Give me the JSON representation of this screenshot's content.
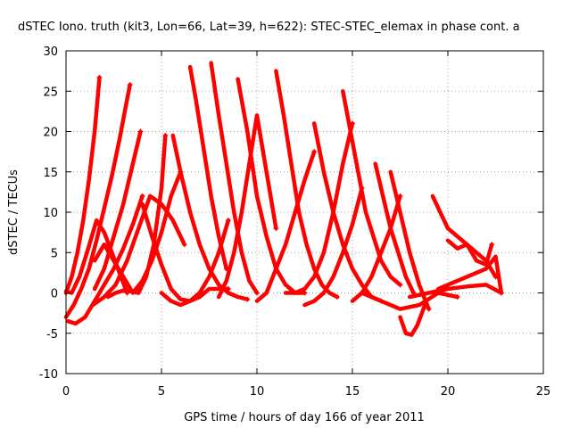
{
  "chart_data": {
    "type": "line",
    "title": "dSTEC Iono. truth (kit3, Lon=66, Lat=39, h=622): STEC-STEC_elemax in phase cont. a",
    "xlabel": "GPS time / hours of day 166 of year 2011",
    "ylabel": "dSTEC  / TECUs",
    "xlim": [
      0,
      25
    ],
    "ylim": [
      -10,
      30
    ],
    "xticks": [
      0,
      5,
      10,
      15,
      20,
      25
    ],
    "yticks": [
      -10,
      -5,
      0,
      5,
      10,
      15,
      20,
      25,
      30
    ],
    "grid": true,
    "marker": "+",
    "color": "#ff0000",
    "series": [
      {
        "x": [
          0.0,
          0.3,
          0.6,
          0.9,
          1.2,
          1.5,
          1.75
        ],
        "y": [
          0,
          2,
          5,
          9,
          14,
          20,
          26.7
        ]
      },
      {
        "x": [
          0.0,
          0.4,
          0.8,
          1.2,
          1.6,
          2.0,
          2.4,
          2.8,
          3.2,
          3.35
        ],
        "y": [
          -3,
          -1.5,
          0.5,
          3,
          6.5,
          10.5,
          14.5,
          19,
          24,
          25.8
        ]
      },
      {
        "x": [
          0.0,
          0.3,
          0.7,
          1.1,
          1.6,
          2.0,
          2.4,
          2.8,
          3.2
        ],
        "y": [
          0.2,
          0,
          2,
          5,
          9,
          7.5,
          5,
          2.5,
          0
        ]
      },
      {
        "x": [
          0.1,
          0.5,
          1.0,
          1.5,
          2.0,
          2.5,
          3.0,
          3.5,
          4.0
        ],
        "y": [
          -3.5,
          -3.8,
          -3,
          -1,
          1,
          3,
          5.5,
          8.5,
          12
        ]
      },
      {
        "x": [
          1.5,
          2.0,
          2.5,
          3.0,
          3.5,
          3.9
        ],
        "y": [
          0.5,
          3,
          7,
          11,
          16,
          20
        ]
      },
      {
        "x": [
          1.4,
          2.0,
          2.6,
          3.2,
          3.8,
          4.4,
          5.0,
          5.6,
          6.2
        ],
        "y": [
          -1.5,
          -0.5,
          1,
          4,
          8,
          12,
          11,
          9,
          6
        ]
      },
      {
        "x": [
          1.5,
          2.0,
          2.5,
          3.0,
          3.5,
          4.0,
          4.5,
          5.0,
          5.5,
          6.0
        ],
        "y": [
          4,
          6,
          4,
          2,
          0,
          1.5,
          4,
          7.5,
          12,
          15
        ]
      },
      {
        "x": [
          2.2,
          2.6,
          3.0,
          3.4,
          3.8,
          4.2,
          4.6,
          5.0,
          5.2
        ],
        "y": [
          -0.5,
          0,
          0.3,
          0.2,
          0,
          2,
          6,
          13,
          19.5
        ]
      },
      {
        "x": [
          4.0,
          4.5,
          5.0,
          5.5,
          6.0,
          6.5,
          7.0,
          7.5,
          8.0,
          8.5
        ],
        "y": [
          11,
          7,
          3.5,
          0.5,
          -0.8,
          -1,
          -0.5,
          0.5,
          0.5,
          0.5
        ]
      },
      {
        "x": [
          5.0,
          5.5,
          6.0,
          6.5,
          7.0,
          7.5,
          8.0,
          8.5
        ],
        "y": [
          0,
          -1,
          -1.5,
          -1,
          0,
          2,
          5,
          9
        ]
      },
      {
        "x": [
          5.6,
          6.0,
          6.5,
          7.0,
          7.5,
          8.0,
          8.5,
          9.0,
          9.5
        ],
        "y": [
          19.5,
          15,
          10,
          6,
          3,
          1,
          0,
          -0.5,
          -0.8
        ]
      },
      {
        "x": [
          6.5,
          6.8,
          7.2,
          7.6,
          8.0,
          8.4
        ],
        "y": [
          28,
          24,
          18,
          12,
          7,
          3
        ]
      },
      {
        "x": [
          7.6,
          8.0,
          8.4,
          8.8,
          9.2,
          9.6,
          10.0
        ],
        "y": [
          28.5,
          22,
          16,
          10,
          5,
          1.5,
          0
        ]
      },
      {
        "x": [
          8.0,
          8.4,
          8.8,
          9.2,
          9.6,
          10.0,
          10.5,
          11.0
        ],
        "y": [
          -0.5,
          1.5,
          5,
          10,
          16,
          22,
          15,
          8
        ]
      },
      {
        "x": [
          9.0,
          9.5,
          10.0,
          10.5,
          11.0,
          11.5,
          12.0,
          12.5
        ],
        "y": [
          26.5,
          20,
          12,
          7,
          3,
          1,
          0,
          0
        ]
      },
      {
        "x": [
          10.0,
          10.5,
          11.0,
          11.5,
          12.0,
          12.5,
          13.0
        ],
        "y": [
          -1,
          0,
          3,
          6,
          10,
          14,
          17.5
        ]
      },
      {
        "x": [
          11.0,
          11.4,
          11.8,
          12.2,
          12.6,
          13.0,
          13.4,
          13.8,
          14.2
        ],
        "y": [
          27.5,
          22,
          16,
          10,
          6,
          3,
          1,
          0,
          -0.5
        ]
      },
      {
        "x": [
          11.5,
          12.0,
          12.5,
          13.0,
          13.5,
          14.0,
          14.5,
          15.0
        ],
        "y": [
          0,
          0,
          0.5,
          2,
          5,
          10,
          16,
          21
        ]
      },
      {
        "x": [
          12.5,
          13.0,
          13.5,
          14.0,
          14.5,
          15.0,
          15.5
        ],
        "y": [
          -1.5,
          -1,
          0,
          2,
          5,
          8.5,
          13
        ]
      },
      {
        "x": [
          13.0,
          13.5,
          14.0,
          14.5,
          15.0,
          15.5,
          16.0,
          16.5
        ],
        "y": [
          21,
          15,
          10,
          6,
          3,
          1,
          -0.5,
          -1
        ]
      },
      {
        "x": [
          14.5,
          14.9,
          15.3,
          15.7,
          16.1,
          16.5,
          17.0,
          17.5
        ],
        "y": [
          25,
          20,
          15,
          10,
          7,
          4,
          2,
          1
        ]
      },
      {
        "x": [
          15.0,
          15.5,
          16.0,
          16.5,
          17.0,
          17.5
        ],
        "y": [
          -1,
          0,
          2,
          5,
          8,
          12
        ]
      },
      {
        "x": [
          16.2,
          16.6,
          17.0,
          17.4,
          17.8,
          18.2
        ],
        "y": [
          16,
          12,
          8,
          5,
          2,
          0
        ]
      },
      {
        "x": [
          17.0,
          17.5,
          18.0,
          18.5,
          19.0
        ],
        "y": [
          15,
          10,
          5,
          1,
          -2
        ]
      },
      {
        "x": [
          17.5,
          17.8,
          18.1,
          18.4,
          18.8
        ],
        "y": [
          -3,
          -5,
          -5.2,
          -4,
          -1.5
        ]
      },
      {
        "x": [
          15.5,
          16.5,
          17.5,
          18.5,
          19.5,
          20.5
        ],
        "y": [
          0,
          -1,
          -2,
          -1.5,
          0,
          -0.5
        ]
      },
      {
        "x": [
          19.2,
          19.6,
          20.0,
          20.5,
          21.0,
          21.5,
          22.0,
          22.5
        ],
        "y": [
          12,
          10,
          8,
          7,
          6,
          5,
          4,
          2
        ]
      },
      {
        "x": [
          19.5,
          20.0,
          20.5,
          21.0,
          21.5,
          22.0,
          22.5,
          22.8
        ],
        "y": [
          0.5,
          1,
          1.5,
          2,
          2.5,
          3,
          4.5,
          0
        ]
      },
      {
        "x": [
          20.0,
          20.5,
          21.0,
          21.5,
          22.0,
          22.3
        ],
        "y": [
          6.5,
          5.5,
          6,
          4,
          3.5,
          6
        ]
      },
      {
        "x": [
          18.0,
          19.0,
          20.0,
          21.0,
          22.0,
          22.8
        ],
        "y": [
          -0.5,
          0,
          0.5,
          0.8,
          1,
          0
        ]
      }
    ]
  }
}
